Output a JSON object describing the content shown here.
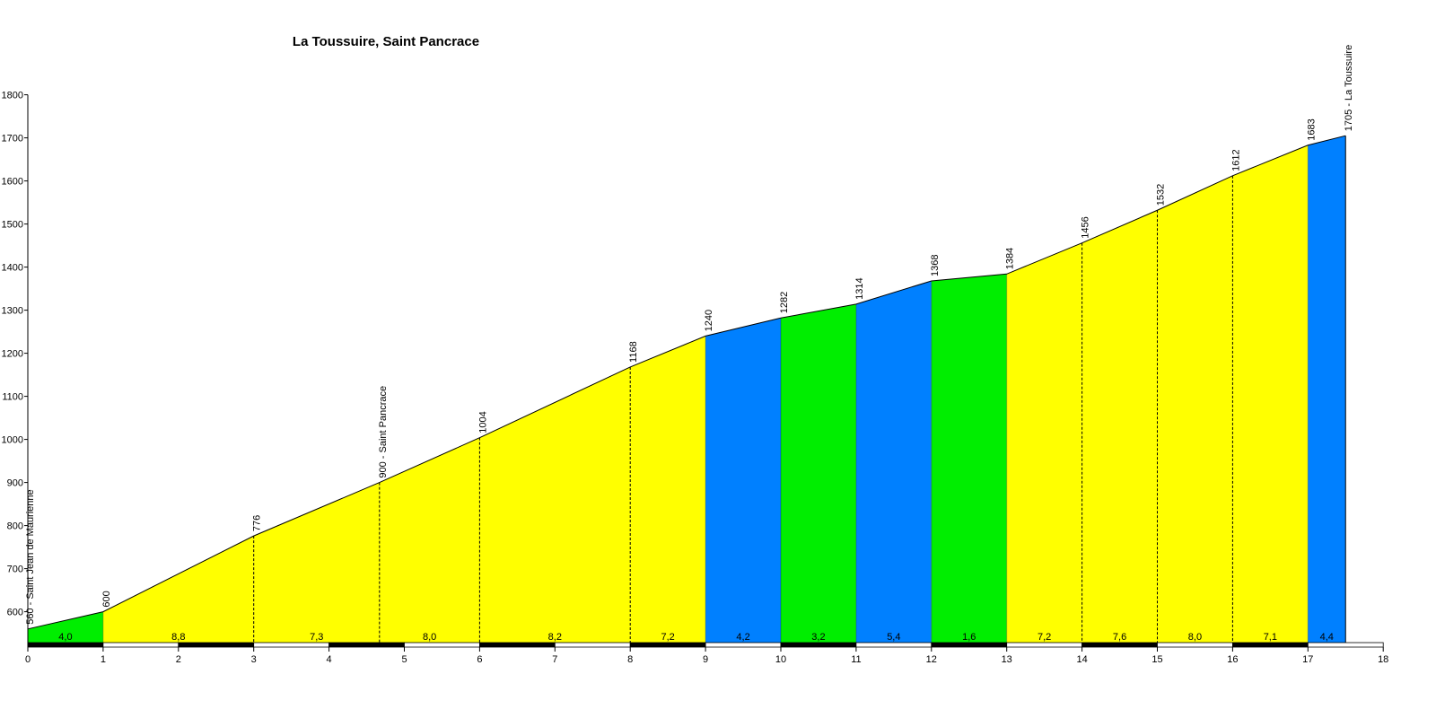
{
  "chart_data": {
    "type": "area",
    "title": "La Toussuire, Saint Pancrace",
    "xlabel": "",
    "ylabel": "",
    "xlim": [
      0,
      18
    ],
    "ylim": [
      520,
      1800
    ],
    "yticks": [
      600,
      700,
      800,
      900,
      1000,
      1100,
      1200,
      1300,
      1400,
      1500,
      1600,
      1700,
      1800
    ],
    "xticks": [
      0,
      1,
      2,
      3,
      4,
      5,
      6,
      7,
      8,
      9,
      10,
      11,
      12,
      13,
      14,
      15,
      16,
      17,
      18
    ],
    "points": [
      {
        "x": 0,
        "y": 560,
        "label": "560 - Saint Jean de Maurienne"
      },
      {
        "x": 1,
        "y": 600,
        "label": "600"
      },
      {
        "x": 3,
        "y": 776,
        "label": "776"
      },
      {
        "x": 4.67,
        "y": 900,
        "label": "900 - Saint Pancrace"
      },
      {
        "x": 6,
        "y": 1004,
        "label": "1004"
      },
      {
        "x": 8,
        "y": 1168,
        "label": "1168"
      },
      {
        "x": 9,
        "y": 1240,
        "label": "1240"
      },
      {
        "x": 10,
        "y": 1282,
        "label": "1282"
      },
      {
        "x": 11,
        "y": 1314,
        "label": "1314"
      },
      {
        "x": 12,
        "y": 1368,
        "label": "1368"
      },
      {
        "x": 13,
        "y": 1384,
        "label": "1384"
      },
      {
        "x": 14,
        "y": 1456,
        "label": "1456"
      },
      {
        "x": 15,
        "y": 1532,
        "label": "1532"
      },
      {
        "x": 16,
        "y": 1612,
        "label": "1612"
      },
      {
        "x": 17,
        "y": 1683,
        "label": "1683"
      },
      {
        "x": 17.5,
        "y": 1705,
        "label": "1705 - La Toussuire"
      }
    ],
    "segments": [
      {
        "from": 0,
        "to": 1,
        "gradient": "4,0",
        "color": "#00ee00"
      },
      {
        "from": 1,
        "to": 3,
        "gradient": "8,8",
        "color": "#ffff00"
      },
      {
        "from": 3,
        "to": 4.67,
        "gradient": "7,3",
        "color": "#ffff00"
      },
      {
        "from": 4.67,
        "to": 6,
        "gradient": "8,0",
        "color": "#ffff00"
      },
      {
        "from": 6,
        "to": 8,
        "gradient": "8,2",
        "color": "#ffff00"
      },
      {
        "from": 8,
        "to": 9,
        "gradient": "7,2",
        "color": "#ffff00"
      },
      {
        "from": 9,
        "to": 10,
        "gradient": "4,2",
        "color": "#0080ff"
      },
      {
        "from": 10,
        "to": 11,
        "gradient": "3,2",
        "color": "#00ee00"
      },
      {
        "from": 11,
        "to": 12,
        "gradient": "5,4",
        "color": "#0080ff"
      },
      {
        "from": 12,
        "to": 13,
        "gradient": "1,6",
        "color": "#00ee00"
      },
      {
        "from": 13,
        "to": 14,
        "gradient": "7,2",
        "color": "#ffff00"
      },
      {
        "from": 14,
        "to": 15,
        "gradient": "7,6",
        "color": "#ffff00"
      },
      {
        "from": 15,
        "to": 16,
        "gradient": "8,0",
        "color": "#ffff00"
      },
      {
        "from": 16,
        "to": 17,
        "gradient": "7,1",
        "color": "#ffff00"
      },
      {
        "from": 17,
        "to": 17.5,
        "gradient": "4,4",
        "color": "#0080ff"
      }
    ],
    "grid": false,
    "legend": "none"
  }
}
